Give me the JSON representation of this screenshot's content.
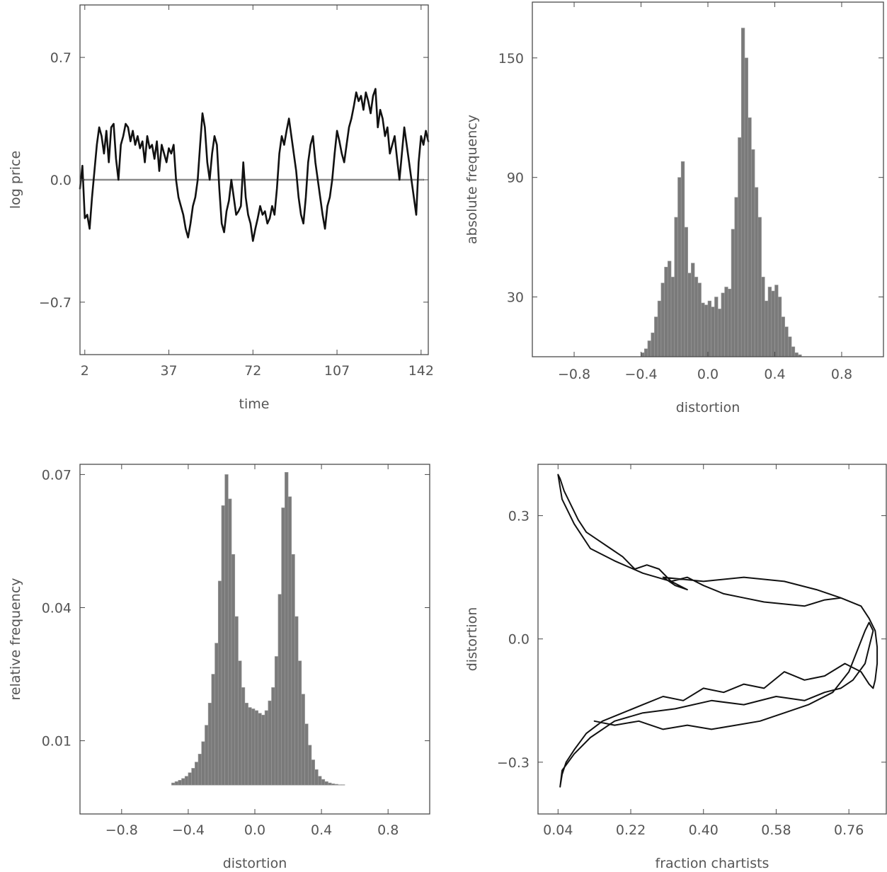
{
  "chart_data": [
    {
      "type": "line",
      "xlabel": "time",
      "ylabel": "log price",
      "xticks": [
        2,
        37,
        72,
        107,
        142
      ],
      "yticks": [
        "0.7",
        "0.0",
        "−0.7"
      ],
      "xlim": [
        0,
        145
      ],
      "ylim": [
        -1.0,
        1.0
      ],
      "reference_line_y": 0.0,
      "series": [
        {
          "x": [
            0,
            1,
            2,
            3,
            4,
            5,
            6,
            7,
            8,
            9,
            10,
            11,
            12,
            13,
            14,
            15,
            16,
            17,
            18,
            19,
            20,
            21,
            22,
            23,
            24,
            25,
            26,
            27,
            28,
            29,
            30,
            31,
            32,
            33,
            34,
            35,
            36,
            37,
            38,
            39,
            40,
            41,
            42,
            43,
            44,
            45,
            46,
            47,
            48,
            49,
            50,
            51,
            52,
            53,
            54,
            55,
            56,
            57,
            58,
            59,
            60,
            61,
            62,
            63,
            64,
            65,
            66,
            67,
            68,
            69,
            70,
            71,
            72,
            73,
            74,
            75,
            76,
            77,
            78,
            79,
            80,
            81,
            82,
            83,
            84,
            85,
            86,
            87,
            88,
            89,
            90,
            91,
            92,
            93,
            94,
            95,
            96,
            97,
            98,
            99,
            100,
            101,
            102,
            103,
            104,
            105,
            106,
            107,
            108,
            109,
            110,
            111,
            112,
            113,
            114,
            115,
            116,
            117,
            118,
            119,
            120,
            121,
            122,
            123,
            124,
            125,
            126,
            127,
            128,
            129,
            130,
            131,
            132,
            133,
            134,
            135,
            136,
            137,
            138,
            139,
            140,
            141,
            142,
            143,
            144,
            145
          ],
          "y": [
            -0.05,
            0.08,
            -0.22,
            -0.2,
            -0.28,
            -0.1,
            0.05,
            0.2,
            0.3,
            0.25,
            0.15,
            0.28,
            0.1,
            0.3,
            0.32,
            0.12,
            0.0,
            0.2,
            0.25,
            0.32,
            0.3,
            0.22,
            0.28,
            0.2,
            0.25,
            0.18,
            0.22,
            0.1,
            0.25,
            0.18,
            0.2,
            0.12,
            0.22,
            0.05,
            0.2,
            0.15,
            0.1,
            0.18,
            0.15,
            0.2,
            0.0,
            -0.1,
            -0.15,
            -0.2,
            -0.28,
            -0.33,
            -0.25,
            -0.15,
            -0.1,
            0.0,
            0.2,
            0.38,
            0.3,
            0.1,
            0.0,
            0.15,
            0.25,
            0.2,
            -0.05,
            -0.25,
            -0.3,
            -0.18,
            -0.12,
            0.0,
            -0.1,
            -0.2,
            -0.18,
            -0.15,
            0.1,
            -0.1,
            -0.2,
            -0.25,
            -0.35,
            -0.28,
            -0.22,
            -0.15,
            -0.2,
            -0.18,
            -0.25,
            -0.22,
            -0.15,
            -0.2,
            -0.05,
            0.15,
            0.25,
            0.2,
            0.28,
            0.35,
            0.25,
            0.15,
            0.05,
            -0.1,
            -0.2,
            -0.25,
            -0.1,
            0.1,
            0.2,
            0.25,
            0.1,
            0.0,
            -0.1,
            -0.2,
            -0.28,
            -0.15,
            -0.1,
            0.0,
            0.15,
            0.28,
            0.22,
            0.15,
            0.1,
            0.2,
            0.3,
            0.35,
            0.42,
            0.5,
            0.45,
            0.48,
            0.4,
            0.5,
            0.45,
            0.38,
            0.48,
            0.52,
            0.3,
            0.4,
            0.35,
            0.25,
            0.3,
            0.15,
            0.2,
            0.25,
            0.12,
            0.0,
            0.15,
            0.3,
            0.2,
            0.1,
            0.0,
            -0.1,
            -0.2,
            0.1,
            0.25,
            0.2,
            0.28,
            0.22
          ]
        }
      ]
    },
    {
      "type": "bar",
      "xlabel": "distortion",
      "ylabel": "absolute frequency",
      "xticks": [
        "−0.8",
        "−0.4",
        "0.0",
        "0.4",
        "0.8"
      ],
      "yticks": [
        "150",
        "90",
        "30"
      ],
      "xlim": [
        -1.05,
        1.05
      ],
      "ylim": [
        0,
        178
      ],
      "bin_width": 0.02,
      "bin_centers": [
        -0.39,
        -0.37,
        -0.35,
        -0.33,
        -0.31,
        -0.29,
        -0.27,
        -0.25,
        -0.23,
        -0.21,
        -0.19,
        -0.17,
        -0.15,
        -0.13,
        -0.11,
        -0.09,
        -0.07,
        -0.05,
        -0.03,
        -0.01,
        0.01,
        0.03,
        0.05,
        0.07,
        0.09,
        0.11,
        0.13,
        0.15,
        0.17,
        0.19,
        0.21,
        0.23,
        0.25,
        0.27,
        0.29,
        0.31,
        0.33,
        0.35,
        0.37,
        0.39,
        0.41,
        0.43,
        0.45,
        0.47,
        0.49,
        0.51,
        0.53,
        0.55
      ],
      "values": [
        2,
        4,
        8,
        12,
        20,
        28,
        37,
        45,
        48,
        40,
        70,
        90,
        98,
        65,
        42,
        47,
        40,
        37,
        27,
        26,
        28,
        25,
        30,
        24,
        32,
        35,
        34,
        64,
        80,
        110,
        165,
        150,
        120,
        104,
        85,
        70,
        40,
        28,
        35,
        33,
        36,
        30,
        20,
        15,
        10,
        5,
        2,
        1
      ]
    },
    {
      "type": "bar",
      "xlabel": "distortion",
      "ylabel": "relative frequency",
      "xticks": [
        "−0.8",
        "−0.4",
        "0.0",
        "0.4",
        "0.8"
      ],
      "yticks": [
        "0.07",
        "0.04",
        "0.01"
      ],
      "xlim": [
        -1.05,
        1.05
      ],
      "ylim": [
        -0.0065,
        0.0723
      ],
      "bin_width": 0.02,
      "bin_centers": [
        -0.49,
        -0.47,
        -0.45,
        -0.43,
        -0.41,
        -0.39,
        -0.37,
        -0.35,
        -0.33,
        -0.31,
        -0.29,
        -0.27,
        -0.25,
        -0.23,
        -0.21,
        -0.19,
        -0.17,
        -0.15,
        -0.13,
        -0.11,
        -0.09,
        -0.07,
        -0.05,
        -0.03,
        -0.01,
        0.01,
        0.03,
        0.05,
        0.07,
        0.09,
        0.11,
        0.13,
        0.15,
        0.17,
        0.19,
        0.21,
        0.23,
        0.25,
        0.27,
        0.29,
        0.31,
        0.33,
        0.35,
        0.37,
        0.39,
        0.41,
        0.43,
        0.45,
        0.47,
        0.49,
        0.51,
        0.53
      ],
      "values": [
        0.0005,
        0.0008,
        0.0011,
        0.0015,
        0.002,
        0.0028,
        0.0038,
        0.0052,
        0.007,
        0.0098,
        0.0135,
        0.0185,
        0.025,
        0.032,
        0.046,
        0.063,
        0.07,
        0.0645,
        0.052,
        0.038,
        0.028,
        0.022,
        0.0185,
        0.0175,
        0.0172,
        0.0168,
        0.0162,
        0.0158,
        0.0168,
        0.019,
        0.022,
        0.029,
        0.043,
        0.0625,
        0.0705,
        0.065,
        0.052,
        0.038,
        0.028,
        0.0205,
        0.0138,
        0.009,
        0.0057,
        0.0035,
        0.002,
        0.0013,
        0.0008,
        0.0005,
        0.0003,
        0.0002,
        0.0001,
        0.0001
      ]
    },
    {
      "type": "line",
      "xlabel": "fraction chartists",
      "ylabel": "distortion",
      "xticks": [
        "0.04",
        "0.22",
        "0.40",
        "0.58",
        "0.76"
      ],
      "yticks": [
        "0.3",
        "0.0",
        "−0.3"
      ],
      "xlim": [
        -0.0096,
        0.8526
      ],
      "ylim": [
        -0.426,
        0.425
      ],
      "series": [
        {
          "x": [
            0.74,
            0.7,
            0.65,
            0.6,
            0.55,
            0.5,
            0.45,
            0.4,
            0.36,
            0.32,
            0.29,
            0.26,
            0.23,
            0.2,
            0.17,
            0.14,
            0.11,
            0.09,
            0.07,
            0.055,
            0.045,
            0.04,
            0.05,
            0.08,
            0.12,
            0.18,
            0.25,
            0.32,
            0.36,
            0.33,
            0.3,
            0.4,
            0.5,
            0.6,
            0.68,
            0.74,
            0.79,
            0.81,
            0.825,
            0.83,
            0.83,
            0.825,
            0.82,
            0.81,
            0.79,
            0.75,
            0.7,
            0.65,
            0.6,
            0.55,
            0.5,
            0.45,
            0.4,
            0.35,
            0.3,
            0.25,
            0.2,
            0.15,
            0.11,
            0.08,
            0.06,
            0.05,
            0.045,
            0.05,
            0.08,
            0.12,
            0.18,
            0.25,
            0.33,
            0.42,
            0.5,
            0.58,
            0.65,
            0.7,
            0.74,
            0.77,
            0.8,
            0.81,
            0.82,
            0.81,
            0.8,
            0.78,
            0.76,
            0.72,
            0.66,
            0.6,
            0.54,
            0.48,
            0.42,
            0.36,
            0.3,
            0.24,
            0.18,
            0.13
          ],
          "y": [
            0.1,
            0.095,
            0.08,
            0.085,
            0.09,
            0.1,
            0.11,
            0.13,
            0.15,
            0.14,
            0.17,
            0.18,
            0.17,
            0.2,
            0.22,
            0.24,
            0.26,
            0.29,
            0.33,
            0.36,
            0.39,
            0.4,
            0.34,
            0.28,
            0.22,
            0.19,
            0.16,
            0.14,
            0.12,
            0.13,
            0.15,
            0.14,
            0.15,
            0.14,
            0.12,
            0.1,
            0.08,
            0.05,
            0.02,
            -0.02,
            -0.06,
            -0.1,
            -0.12,
            -0.11,
            -0.08,
            -0.06,
            -0.09,
            -0.1,
            -0.08,
            -0.12,
            -0.11,
            -0.13,
            -0.12,
            -0.15,
            -0.14,
            -0.16,
            -0.18,
            -0.2,
            -0.23,
            -0.27,
            -0.3,
            -0.33,
            -0.36,
            -0.32,
            -0.28,
            -0.24,
            -0.2,
            -0.18,
            -0.17,
            -0.15,
            -0.16,
            -0.14,
            -0.15,
            -0.13,
            -0.12,
            -0.1,
            -0.06,
            -0.02,
            0.02,
            0.04,
            0.02,
            -0.03,
            -0.08,
            -0.13,
            -0.16,
            -0.18,
            -0.2,
            -0.21,
            -0.22,
            -0.21,
            -0.22,
            -0.2,
            -0.21,
            -0.2
          ]
        }
      ]
    }
  ]
}
